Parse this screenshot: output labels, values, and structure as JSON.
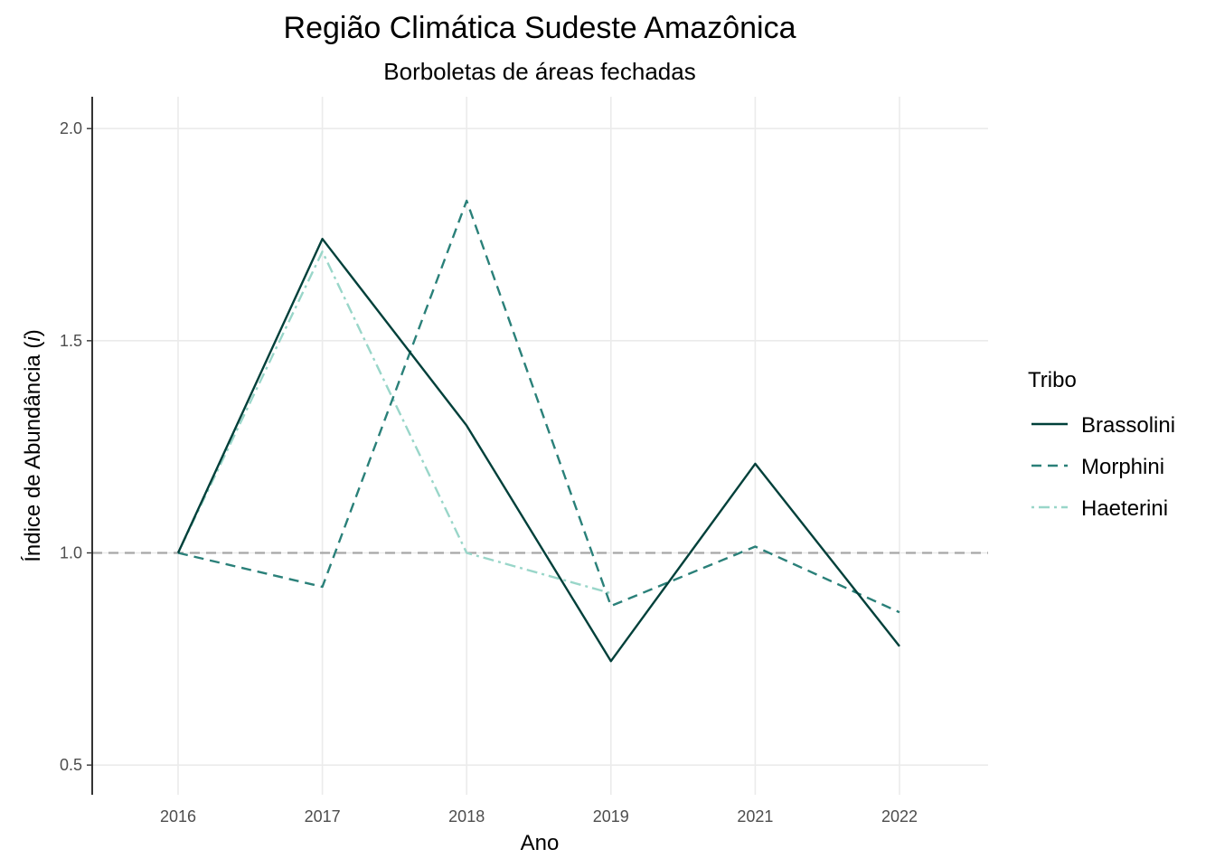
{
  "chart_data": {
    "type": "line",
    "title": "Região Climática Sudeste Amazônica",
    "subtitle": "Borboletas de áreas fechadas",
    "xlabel": "Ano",
    "ylabel": "Índice de Abundância (",
    "ylabel_italic": "i",
    "ylabel_end": ")",
    "categories": [
      "2016",
      "2017",
      "2018",
      "2019",
      "2021",
      "2022"
    ],
    "yticks": [
      "0.5",
      "1.0",
      "1.5",
      "2.0"
    ],
    "ylim": [
      0.43,
      2.075
    ],
    "grid": true,
    "reference_line": 1.0,
    "legend": {
      "title": "Tribo",
      "placement": "right"
    },
    "series": [
      {
        "name": "Brassolini",
        "color": "#00403a",
        "dash": "solid",
        "values": [
          1.0,
          1.74,
          1.3,
          0.745,
          1.21,
          0.78
        ]
      },
      {
        "name": "Morphini",
        "color": "#2a8079",
        "dash": "dashed",
        "values": [
          1.0,
          0.92,
          1.83,
          0.875,
          1.015,
          0.86
        ]
      },
      {
        "name": "Haeterini",
        "color": "#99d6c9",
        "dash": "dotdash",
        "values": [
          1.0,
          1.71,
          1.0,
          0.905,
          null,
          null
        ]
      }
    ]
  }
}
